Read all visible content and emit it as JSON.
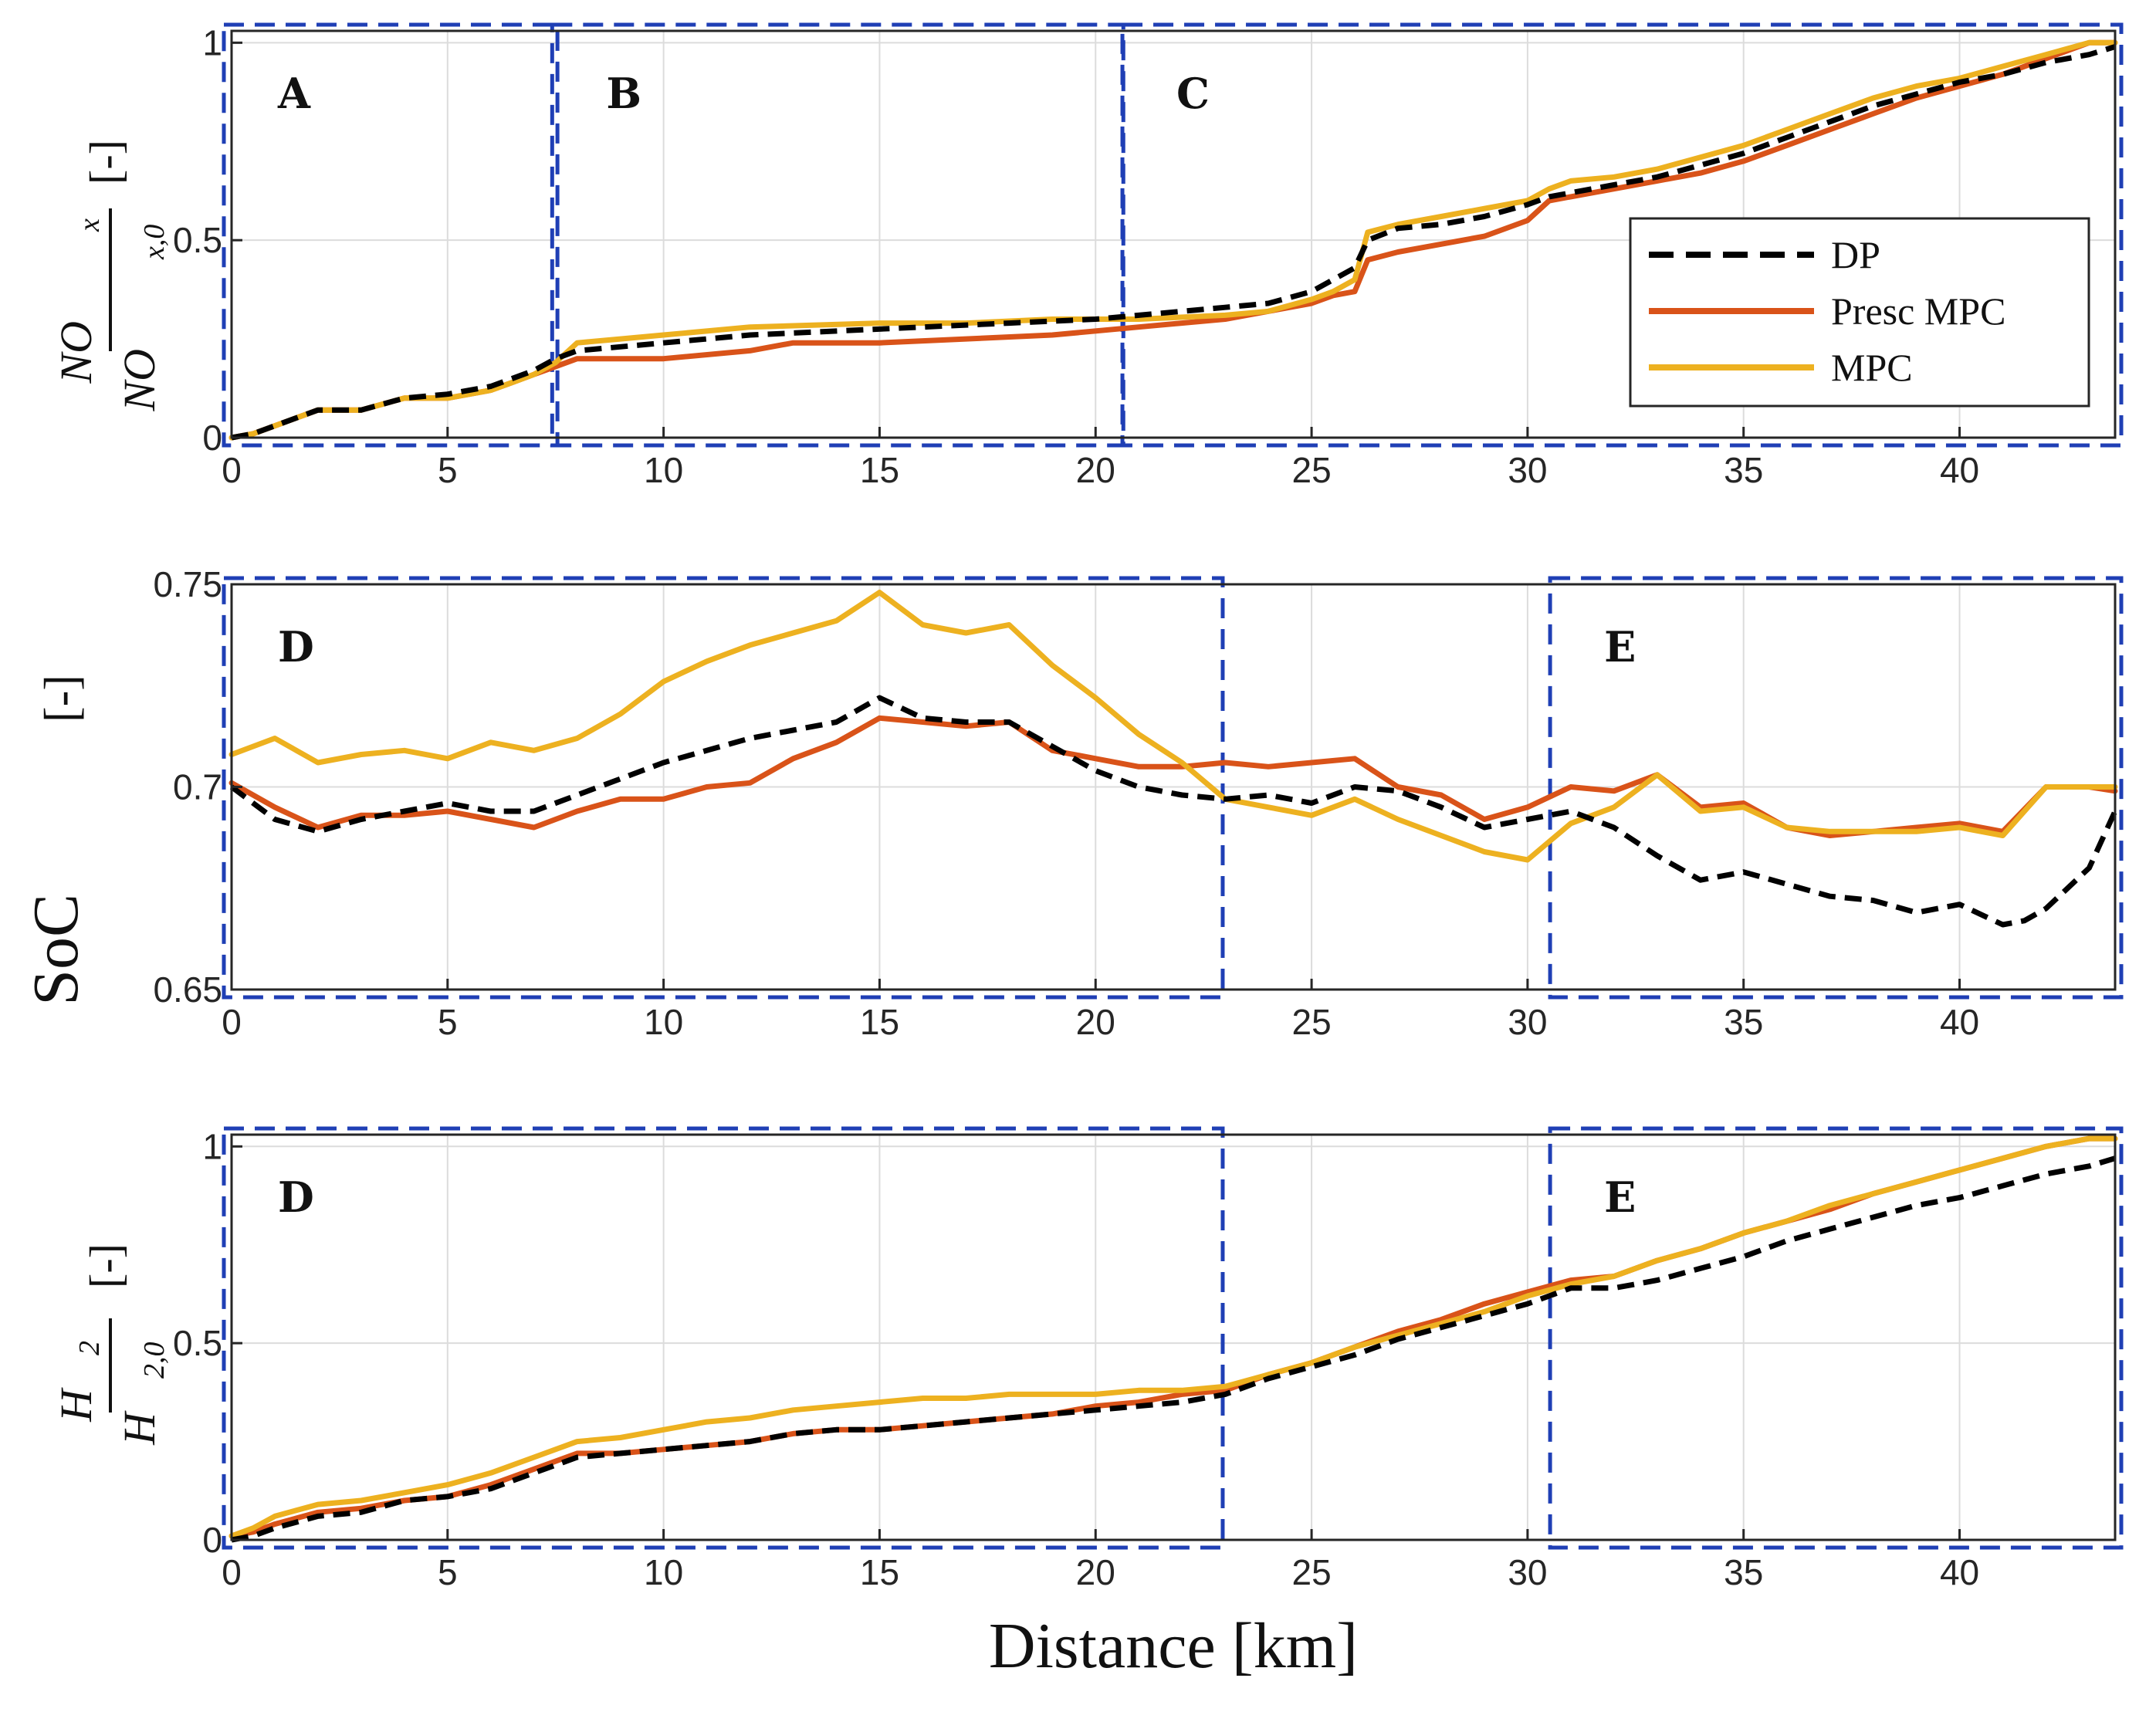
{
  "chart_data": [
    {
      "type": "line",
      "ylabel": {
        "num": "NO",
        "num_sub": "x",
        "den": "NO",
        "den_sub": "x,0",
        "unit": "[-]"
      },
      "xlim": [
        0,
        43.6
      ],
      "ylim": [
        0,
        1.03
      ],
      "xticks": [
        "0",
        "5",
        "10",
        "15",
        "20",
        "25",
        "30",
        "35",
        "40"
      ],
      "yticks": [
        "0",
        "0.5",
        "1"
      ],
      "grid": true,
      "legend": {
        "placement": "middle-right",
        "entries": [
          "DP",
          "Presc MPC",
          "MPC"
        ]
      },
      "regions": [
        {
          "label": "A",
          "x0": 0,
          "x1": 7.4,
          "y0": 0,
          "y1": 1.03
        },
        {
          "label": "B",
          "x0": 7.6,
          "x1": 20.5,
          "y0": 0,
          "y1": 1.03
        },
        {
          "label": "C",
          "x0": 20.8,
          "x1": 43.6,
          "y0": 0,
          "y1": 1.03
        }
      ],
      "series": [
        {
          "name": "DP",
          "color": "#000000",
          "dash": true,
          "x": [
            0,
            0.5,
            1,
            2,
            3,
            4,
            5,
            6,
            6.5,
            7,
            7.5,
            8,
            9,
            10,
            12,
            14,
            16,
            18,
            20,
            22,
            23,
            24,
            25,
            25.5,
            26,
            26.3,
            27,
            28,
            29,
            30,
            30.5,
            31,
            32,
            33,
            34,
            35,
            36,
            37,
            38,
            39,
            40,
            41,
            42,
            43,
            43.6
          ],
          "y": [
            0,
            0.01,
            0.03,
            0.07,
            0.07,
            0.1,
            0.11,
            0.13,
            0.15,
            0.17,
            0.2,
            0.22,
            0.23,
            0.24,
            0.26,
            0.27,
            0.28,
            0.29,
            0.3,
            0.32,
            0.33,
            0.34,
            0.37,
            0.4,
            0.43,
            0.5,
            0.53,
            0.54,
            0.56,
            0.59,
            0.61,
            0.62,
            0.64,
            0.66,
            0.69,
            0.72,
            0.76,
            0.8,
            0.84,
            0.87,
            0.9,
            0.92,
            0.95,
            0.97,
            0.99
          ]
        },
        {
          "name": "Presc MPC",
          "color": "#D95319",
          "dash": false,
          "x": [
            0,
            0.5,
            1,
            2,
            3,
            4,
            5,
            6,
            6.5,
            7,
            7.5,
            8,
            9,
            10,
            12,
            13,
            15,
            17,
            19,
            21,
            23,
            24,
            25,
            25.5,
            26,
            26.3,
            27,
            28,
            29,
            30,
            30.5,
            31,
            32,
            33,
            34,
            35,
            36,
            37,
            38,
            39,
            40,
            41,
            42,
            43,
            43.6
          ],
          "y": [
            0,
            0.01,
            0.03,
            0.07,
            0.07,
            0.1,
            0.1,
            0.12,
            0.14,
            0.16,
            0.18,
            0.2,
            0.2,
            0.2,
            0.22,
            0.24,
            0.24,
            0.25,
            0.26,
            0.28,
            0.3,
            0.32,
            0.34,
            0.36,
            0.37,
            0.45,
            0.47,
            0.49,
            0.51,
            0.55,
            0.6,
            0.61,
            0.63,
            0.65,
            0.67,
            0.7,
            0.74,
            0.78,
            0.82,
            0.86,
            0.89,
            0.92,
            0.96,
            1.0,
            1.0
          ]
        },
        {
          "name": "MPC",
          "color": "#EDB120",
          "dash": false,
          "x": [
            0,
            0.5,
            1,
            2,
            3,
            4,
            5,
            6,
            6.5,
            7,
            7.5,
            8,
            9,
            10,
            11,
            12,
            15,
            17,
            19,
            21,
            23,
            24,
            25,
            25.5,
            26,
            26.3,
            27,
            28,
            29,
            30,
            30.5,
            31,
            32,
            33,
            34,
            35,
            36,
            37,
            38,
            39,
            40,
            41,
            42,
            43,
            43.6
          ],
          "y": [
            0,
            0.01,
            0.03,
            0.07,
            0.07,
            0.1,
            0.1,
            0.12,
            0.14,
            0.16,
            0.19,
            0.24,
            0.25,
            0.26,
            0.27,
            0.28,
            0.29,
            0.29,
            0.3,
            0.3,
            0.31,
            0.32,
            0.35,
            0.37,
            0.4,
            0.52,
            0.54,
            0.56,
            0.58,
            0.6,
            0.63,
            0.65,
            0.66,
            0.68,
            0.71,
            0.74,
            0.78,
            0.82,
            0.86,
            0.89,
            0.91,
            0.94,
            0.97,
            1.0,
            1.0
          ]
        }
      ]
    },
    {
      "type": "line",
      "ylabel": {
        "text": "SoC",
        "unit": "[-]"
      },
      "xlim": [
        0,
        43.6
      ],
      "ylim": [
        0.65,
        0.75
      ],
      "xticks": [
        "0",
        "5",
        "10",
        "15",
        "20",
        "25",
        "30",
        "35",
        "40"
      ],
      "yticks": [
        "0.65",
        "0.7",
        "0.75"
      ],
      "grid": true,
      "regions": [
        {
          "label": "D",
          "x0": 0,
          "x1": 22.8,
          "y0": 0.65,
          "y1": 0.75
        },
        {
          "label": "E",
          "x0": 30.7,
          "x1": 43.6,
          "y0": 0.65,
          "y1": 0.75
        }
      ],
      "series": [
        {
          "name": "DP",
          "color": "#000000",
          "dash": true,
          "x": [
            0,
            1,
            2,
            3,
            4,
            5,
            6,
            7,
            8,
            9,
            10,
            11,
            12,
            13,
            14,
            15,
            16,
            17,
            18,
            19,
            20,
            21,
            22,
            23,
            24,
            25,
            26,
            27,
            28,
            29,
            30,
            31,
            32,
            33,
            34,
            35,
            36,
            37,
            38,
            39,
            40,
            41,
            41.5,
            42,
            43,
            43.6
          ],
          "y": [
            0.7,
            0.692,
            0.689,
            0.692,
            0.694,
            0.696,
            0.694,
            0.694,
            0.698,
            0.702,
            0.706,
            0.709,
            0.712,
            0.714,
            0.716,
            0.722,
            0.717,
            0.716,
            0.716,
            0.71,
            0.704,
            0.7,
            0.698,
            0.697,
            0.698,
            0.696,
            0.7,
            0.699,
            0.695,
            0.69,
            0.692,
            0.694,
            0.69,
            0.683,
            0.677,
            0.679,
            0.676,
            0.673,
            0.672,
            0.669,
            0.671,
            0.666,
            0.667,
            0.67,
            0.68,
            0.694
          ]
        },
        {
          "name": "Presc MPC",
          "color": "#D95319",
          "dash": false,
          "x": [
            0,
            1,
            2,
            3,
            4,
            5,
            6,
            7,
            8,
            9,
            10,
            11,
            12,
            13,
            14,
            15,
            16,
            17,
            18,
            19,
            20,
            21,
            22,
            23,
            24,
            25,
            26,
            27,
            28,
            29,
            30,
            31,
            32,
            33,
            34,
            35,
            36,
            37,
            38,
            39,
            40,
            41,
            42,
            43,
            43.6
          ],
          "y": [
            0.701,
            0.695,
            0.69,
            0.693,
            0.693,
            0.694,
            0.692,
            0.69,
            0.694,
            0.697,
            0.697,
            0.7,
            0.701,
            0.707,
            0.711,
            0.717,
            0.716,
            0.715,
            0.716,
            0.709,
            0.707,
            0.705,
            0.705,
            0.706,
            0.705,
            0.706,
            0.707,
            0.7,
            0.698,
            0.692,
            0.695,
            0.7,
            0.699,
            0.703,
            0.695,
            0.696,
            0.69,
            0.688,
            0.689,
            0.69,
            0.691,
            0.689,
            0.7,
            0.7,
            0.699
          ]
        },
        {
          "name": "MPC",
          "color": "#EDB120",
          "dash": false,
          "x": [
            0,
            1,
            2,
            3,
            4,
            5,
            6,
            7,
            8,
            9,
            10,
            11,
            12,
            13,
            14,
            15,
            16,
            17,
            18,
            19,
            20,
            21,
            22,
            23,
            24,
            25,
            26,
            27,
            28,
            29,
            30,
            31,
            32,
            33,
            34,
            35,
            36,
            37,
            38,
            39,
            40,
            41,
            42,
            43,
            43.6
          ],
          "y": [
            0.708,
            0.712,
            0.706,
            0.708,
            0.709,
            0.707,
            0.711,
            0.709,
            0.712,
            0.718,
            0.726,
            0.731,
            0.735,
            0.738,
            0.741,
            0.748,
            0.74,
            0.738,
            0.74,
            0.73,
            0.722,
            0.713,
            0.706,
            0.697,
            0.695,
            0.693,
            0.697,
            0.692,
            0.688,
            0.684,
            0.682,
            0.691,
            0.695,
            0.703,
            0.694,
            0.695,
            0.69,
            0.689,
            0.689,
            0.689,
            0.69,
            0.688,
            0.7,
            0.7,
            0.7
          ]
        }
      ]
    },
    {
      "type": "line",
      "ylabel": {
        "num": "H",
        "num_sub": "2",
        "den": "H",
        "den_sub": "2,0",
        "unit": "[-]"
      },
      "xlabel": "Distance [km]",
      "xlim": [
        0,
        43.6
      ],
      "ylim": [
        0,
        1.03
      ],
      "xticks": [
        "0",
        "5",
        "10",
        "15",
        "20",
        "25",
        "30",
        "35",
        "40"
      ],
      "yticks": [
        "0",
        "0.5",
        "1"
      ],
      "grid": true,
      "regions": [
        {
          "label": "D",
          "x0": 0,
          "x1": 22.8,
          "y0": 0,
          "y1": 1.03
        },
        {
          "label": "E",
          "x0": 30.7,
          "x1": 43.6,
          "y0": 0,
          "y1": 1.03
        }
      ],
      "series": [
        {
          "name": "DP",
          "color": "#000000",
          "dash": true,
          "x": [
            0,
            0.5,
            1,
            2,
            3,
            4,
            5,
            6,
            7,
            8,
            9,
            10,
            11,
            12,
            13,
            14,
            15,
            16,
            17,
            18,
            19,
            20,
            21,
            22,
            23,
            24,
            25,
            26,
            27,
            28,
            29,
            30,
            31,
            32,
            33,
            34,
            35,
            36,
            37,
            38,
            39,
            40,
            41,
            42,
            43,
            43.6
          ],
          "y": [
            0,
            0.01,
            0.03,
            0.06,
            0.07,
            0.1,
            0.11,
            0.13,
            0.17,
            0.21,
            0.22,
            0.23,
            0.24,
            0.25,
            0.27,
            0.28,
            0.28,
            0.29,
            0.3,
            0.31,
            0.32,
            0.33,
            0.34,
            0.35,
            0.37,
            0.41,
            0.44,
            0.47,
            0.51,
            0.54,
            0.57,
            0.6,
            0.64,
            0.64,
            0.66,
            0.69,
            0.72,
            0.76,
            0.79,
            0.82,
            0.85,
            0.87,
            0.9,
            0.93,
            0.95,
            0.97
          ]
        },
        {
          "name": "Presc MPC",
          "color": "#D95319",
          "dash": false,
          "x": [
            0,
            0.5,
            1,
            2,
            3,
            4,
            5,
            6,
            7,
            8,
            9,
            10,
            11,
            12,
            13,
            14,
            15,
            16,
            17,
            18,
            19,
            20,
            21,
            22,
            23,
            24,
            25,
            26,
            27,
            28,
            29,
            30,
            31,
            32,
            33,
            34,
            35,
            36,
            37,
            38,
            39,
            40,
            41,
            42,
            43,
            43.6
          ],
          "y": [
            0.01,
            0.02,
            0.04,
            0.07,
            0.08,
            0.1,
            0.11,
            0.14,
            0.18,
            0.22,
            0.22,
            0.23,
            0.24,
            0.25,
            0.27,
            0.28,
            0.28,
            0.29,
            0.3,
            0.31,
            0.32,
            0.34,
            0.35,
            0.37,
            0.38,
            0.42,
            0.45,
            0.49,
            0.53,
            0.56,
            0.6,
            0.63,
            0.66,
            0.67,
            0.71,
            0.74,
            0.78,
            0.81,
            0.84,
            0.88,
            0.91,
            0.94,
            0.97,
            1.0,
            1.02,
            1.02
          ]
        },
        {
          "name": "MPC",
          "color": "#EDB120",
          "dash": false,
          "x": [
            0,
            0.5,
            1,
            2,
            3,
            4,
            5,
            6,
            7,
            8,
            9,
            10,
            11,
            12,
            13,
            14,
            15,
            16,
            17,
            18,
            19,
            20,
            21,
            22,
            23,
            24,
            25,
            26,
            27,
            28,
            29,
            30,
            31,
            32,
            33,
            34,
            35,
            36,
            37,
            38,
            39,
            40,
            41,
            42,
            43,
            43.6
          ],
          "y": [
            0.01,
            0.03,
            0.06,
            0.09,
            0.1,
            0.12,
            0.14,
            0.17,
            0.21,
            0.25,
            0.26,
            0.28,
            0.3,
            0.31,
            0.33,
            0.34,
            0.35,
            0.36,
            0.36,
            0.37,
            0.37,
            0.37,
            0.38,
            0.38,
            0.39,
            0.42,
            0.45,
            0.49,
            0.52,
            0.55,
            0.58,
            0.62,
            0.65,
            0.67,
            0.71,
            0.74,
            0.78,
            0.81,
            0.85,
            0.88,
            0.91,
            0.94,
            0.97,
            1.0,
            1.02,
            1.02
          ]
        }
      ]
    }
  ]
}
